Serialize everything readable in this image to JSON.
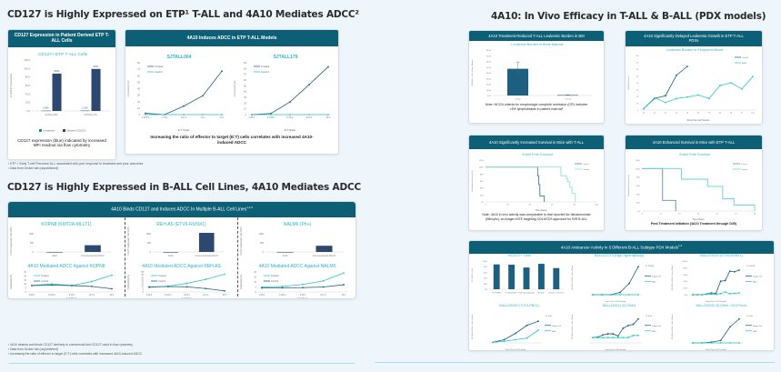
{
  "colors": {
    "header_bg": "#0c5f75",
    "accent_teal": "#2bb3c9",
    "dark_navy": "#2c4770",
    "dark_teal": "#1d5f80",
    "page_bg": "#eef5fb"
  },
  "left": {
    "section1": {
      "title": "CD127 is Highly Expressed on ETP¹ T-ALL and 4A10 Mediates ADCC²",
      "card_expression": {
        "header": "CD127 Expression in Patient Derived ETP T-ALL Cells",
        "note": "CD127 expression (blue) indicated by increased MFI readout via flow cytometry"
      },
      "card_adcc": {
        "header": "4A10 Induces ADCC in ETP T-ALL Models",
        "note": "Increasing the ratio of effector to target (E:T) cells correlates with increased 4A10-induced ADCC"
      },
      "footnotes": [
        "¹ ETP = Early T-cell Precursor ALL; associated with poor response to treatment and poor outcomes",
        "² Data from Druker lab (unpublished)"
      ]
    },
    "section2": {
      "title": "CD127 is Highly Expressed in B-ALL Cell Lines, 4A10 Mediates ADCC",
      "card": {
        "header": "4A10 Binds CD127 and Induces ADCC In Multiple B-ALL Cell Lines",
        "header_sup": "1,2,3"
      },
      "footnotes": [
        "¹ 4A10 detects and binds CD127 similarly to commercial Anti-CD127 used in flow cytometry",
        "² Data from Druker lab (unpublished)",
        "³ Increasing the ratio of effector to target (E:T) cells correlates with increased 4A10-induced ADCC"
      ]
    }
  },
  "right": {
    "title": "4A10: In Vivo Efficacy in T-ALL & B-ALL (PDX models)",
    "card_bm": {
      "header": "4A10 Treatment Reduced T-ALL Leukemic Burden in BM",
      "note": "Note: NCCN criteria for morphologic complete remission (CR) includes <5% lymphoblasts in patient marrow¹"
    },
    "card_pb": {
      "header": "4A10 Significantly Delayed Leukemia Growth in ETP T-ALL PDXs"
    },
    "card_surv_tall": {
      "header": "4A10 Significantly Increased Survival in Mice with T-ALL",
      "note": "Note: 4A10 in vivo activity was comparable to that reported for blinatumomab (Blincyto), an Amgen BiTE targeting CD19/CD3 approved for R/R B-ALL"
    },
    "card_surv_etp": {
      "header": "4A10 Enhanced Survival in Mice with ETP T-ALL",
      "note": "Post Treatment Initiation (4A10 Treatment through D45)"
    },
    "card_pdx": {
      "header": "4A10 Anticancer Activity in 5 Different B-ALL Subtype PDX Models",
      "header_sup": "1,2"
    }
  },
  "chart_data": [
    {
      "id": "cd127-etp",
      "type": "bar",
      "title": "CD127+ ETP T-ALL Cells",
      "ylabel": "% CD127 Expression",
      "ylim": [
        0,
        120
      ],
      "yticks": [
        "0.0",
        "20.0",
        "40.0",
        "60.0",
        "80.0",
        "100.0",
        "120.0"
      ],
      "categories": [
        "SJTALL004",
        "SJTALL179"
      ],
      "series": [
        {
          "name": "Unstained",
          "color": "#2a7fa8",
          "values": [
            0.9,
            1.1
          ],
          "labels": [
            "0.9%",
            "1.1%"
          ]
        },
        {
          "name": "Stained (CD127)",
          "color": "#2c4770",
          "values": [
            88,
            99
          ],
          "labels": [
            "88%",
            "99%"
          ]
        }
      ],
      "legend": "bottom"
    },
    {
      "id": "adcc-sjtall004",
      "type": "line",
      "title": "SJTALL004",
      "xlabel": "E:T Ratio",
      "ylabel": "Cytotoxicity (%)",
      "ylim": [
        0,
        80
      ],
      "yticks": [
        0,
        10,
        20,
        30,
        40,
        50,
        60,
        70,
        80
      ],
      "x": [
        "1.375:1",
        "2.75:1",
        "5.5:1",
        "11:1",
        "22:1"
      ],
      "series": [
        {
          "name": "Treated",
          "color": "#1d5f80",
          "values": [
            2,
            0,
            13,
            29,
            67
          ]
        },
        {
          "name": "Control",
          "color": "#2bc9c0",
          "values": [
            0,
            0,
            0,
            0,
            0
          ]
        }
      ],
      "legend": "top-left"
    },
    {
      "id": "adcc-sjtall179",
      "type": "line",
      "title": "SJTALL179",
      "xlabel": "E:T Ratio",
      "ylabel": "Cytotoxicity (%)",
      "ylim": [
        0,
        90
      ],
      "yticks": [
        0,
        10,
        20,
        30,
        40,
        50,
        60,
        70,
        80,
        90
      ],
      "x": [
        "1.56:1",
        "3.125:1",
        "6.25:1",
        "12.5:1",
        "25:1"
      ],
      "series": [
        {
          "name": "Treated",
          "color": "#1d5f80",
          "values": [
            0,
            2,
            22,
            52,
            83
          ]
        },
        {
          "name": "Control",
          "color": "#2bc9c0",
          "values": [
            0,
            0,
            0,
            0,
            0
          ]
        }
      ],
      "legend": "top-left"
    },
    {
      "id": "cd127-kopn8",
      "type": "bar",
      "title": "KOPN8 (KMT2A-MLLT1)",
      "ylabel": "CD127 Expression Fold (MFI)",
      "ylim": [
        0,
        1200
      ],
      "yticks": [
        0,
        500,
        1000
      ],
      "categories": [
        "4A10",
        "Commercial Anti-CD127"
      ],
      "values": [
        0,
        370
      ],
      "color": "#2c4770"
    },
    {
      "id": "cd127-rehas",
      "type": "bar",
      "title": "REH.AS (ETV6-RUNX1)",
      "ylabel": "CD127 Expression Fold (MFI)",
      "ylim": [
        0,
        1200
      ],
      "yticks": [
        0,
        500,
        1000
      ],
      "categories": [
        "4A10",
        "Commercial Anti-CD127"
      ],
      "values": [
        0,
        1050
      ],
      "color": "#2c4770"
    },
    {
      "id": "cd127-nalm6",
      "type": "bar",
      "title": "NALM6 (Ph+)",
      "ylabel": "CD127 Expression Fold (MFI)",
      "ylim": [
        0,
        1200
      ],
      "yticks": [
        0,
        500,
        1000
      ],
      "categories": [
        "4A10",
        "Commercial Anti-CD127"
      ],
      "values": [
        0,
        340
      ],
      "color": "#2c4770"
    },
    {
      "id": "adcc-kopn8",
      "type": "line",
      "title": "4A10 Mediated ADCC Against KOPN8",
      "xlabel": "E:T Ratio",
      "ylabel": "Cytotoxicity (%)",
      "ylim": [
        0,
        25
      ],
      "yticks": [
        0,
        5,
        10,
        15,
        20,
        25
      ],
      "x": [
        "1.56:1",
        "3.125:1",
        "6.25:1",
        "12.5:1",
        "25:1"
      ],
      "series": [
        {
          "name": "Treated",
          "color": "#2bc9c0",
          "values": [
            8,
            10,
            8,
            13,
            21
          ]
        },
        {
          "name": "Control",
          "color": "#1d5f80",
          "values": [
            8,
            8.5,
            8,
            7,
            4
          ]
        }
      ],
      "legend": "top-left"
    },
    {
      "id": "adcc-rehas",
      "type": "line",
      "title": "4A10 Mediated ADCC Against REH.AS",
      "xlabel": "E:T Ratio",
      "ylabel": "Cytotoxicity (%)",
      "ylim": [
        0,
        35
      ],
      "yticks": [
        0,
        5,
        10,
        15,
        20,
        25,
        30,
        35
      ],
      "x": [
        "1.56:1",
        "3.125:1",
        "6.25:1",
        "12.5:1",
        "25:1"
      ],
      "series": [
        {
          "name": "Treated",
          "color": "#2bc9c0",
          "values": [
            8,
            10,
            15,
            22,
            31
          ]
        },
        {
          "name": "Control",
          "color": "#1d5f80",
          "values": [
            9,
            9.5,
            9,
            6,
            2
          ]
        }
      ],
      "legend": "top-left"
    },
    {
      "id": "adcc-nalm6",
      "type": "line",
      "title": "4A10 Mediated ADCC Against NALM6",
      "xlabel": "E:T Ratio",
      "ylabel": "Cytotoxicity (%)",
      "ylim": [
        0,
        20
      ],
      "yticks": [
        0,
        5,
        10,
        15,
        20
      ],
      "x": [
        "1.56:1",
        "3.125:1",
        "6.25:1",
        "12.5:1",
        "25:1"
      ],
      "series": [
        {
          "name": "Treated",
          "color": "#2bc9c0",
          "values": [
            5,
            5.5,
            7.5,
            11,
            19
          ]
        },
        {
          "name": "Control",
          "color": "#1d5f80",
          "values": [
            4,
            4.2,
            4.3,
            5,
            7.2
          ]
        }
      ],
      "legend": "top-left"
    },
    {
      "id": "bm-burden",
      "type": "bar",
      "title": "Leukemic Burden in Bone Marrow",
      "ylabel": "%hCD45+ Cells in Bone Marrow",
      "ylim": [
        0,
        80
      ],
      "yticks": [
        "0.00",
        "10.00",
        "20.00",
        "30.00",
        "40.00",
        "50.00",
        "60.00",
        "70.00",
        "80.00"
      ],
      "categories": [
        "Control",
        "Treated"
      ],
      "values": [
        47,
        0.8
      ],
      "errors": [
        12,
        0.3
      ],
      "color": "#1d5f80"
    },
    {
      "id": "pb-burden",
      "type": "line",
      "title": "Leukemic Burden in Peripheral Blood",
      "xlabel": "Days Post Cell Transfer",
      "ylabel": "%hCD45 Positive",
      "ylim": [
        0,
        80
      ],
      "yticks": [
        0,
        10,
        20,
        30,
        40,
        50,
        60,
        70,
        80
      ],
      "x": [
        "20",
        "41",
        "47",
        "55",
        "62",
        "69",
        "76",
        "83",
        "90",
        "97",
        "104"
      ],
      "series": [
        {
          "name": "Control",
          "color": "#1d5f80",
          "values": [
            2,
            17,
            21,
            51,
            64,
            null,
            null,
            null,
            null,
            null,
            null
          ]
        },
        {
          "name": "4A10",
          "color": "#2bc9c0",
          "values": [
            2,
            18,
            11,
            17,
            19,
            22,
            17,
            36,
            40,
            31,
            49
          ]
        }
      ],
      "legend": "top-right"
    },
    {
      "id": "efs-tall",
      "type": "line",
      "title": "Event Free Survival",
      "xlabel": "Time (Days)",
      "ylabel": "Probability of Survival (%)",
      "ylim": [
        0,
        120
      ],
      "yticks": [
        "0%",
        "20%",
        "40%",
        "60%",
        "80%",
        "100%",
        "120%"
      ],
      "xlim": [
        0,
        100
      ],
      "xticks": [
        0,
        20,
        40,
        60,
        80,
        100
      ],
      "series": [
        {
          "name": "Control",
          "color": "#3b7f9c",
          "steps": [
            [
              0,
              100
            ],
            [
              47,
              100
            ],
            [
              47,
              75
            ],
            [
              48,
              75
            ],
            [
              48,
              50
            ],
            [
              49,
              50
            ],
            [
              49,
              17
            ],
            [
              53,
              17
            ],
            [
              53,
              0
            ]
          ]
        },
        {
          "name": "Treated",
          "color": "#8fdfe0",
          "steps": [
            [
              0,
              100
            ],
            [
              68,
              100
            ],
            [
              68,
              75
            ],
            [
              73,
              75
            ],
            [
              73,
              67
            ],
            [
              74,
              67
            ],
            [
              74,
              58
            ],
            [
              76,
              58
            ],
            [
              76,
              42
            ],
            [
              78,
              42
            ],
            [
              78,
              25
            ],
            [
              81,
              25
            ],
            [
              81,
              0
            ]
          ]
        }
      ],
      "legend": "top-right"
    },
    {
      "id": "efs-etp",
      "type": "line",
      "title": "Event Free Survival",
      "xlabel": "Time (Days)",
      "ylabel": "Probability of Survival (%)",
      "ylim": [
        0,
        120
      ],
      "yticks": [
        "0%",
        "20%",
        "40%",
        "60%",
        "80%",
        "100%",
        "120%"
      ],
      "xlim": [
        0,
        60
      ],
      "xticks": [
        0,
        10,
        20,
        30,
        40,
        50,
        60
      ],
      "series": [
        {
          "name": "Control",
          "color": "#5c8faa",
          "steps": [
            [
              0,
              100
            ],
            [
              11,
              100
            ],
            [
              11,
              25
            ],
            [
              18,
              25
            ],
            [
              18,
              0
            ]
          ]
        },
        {
          "name": "Treated",
          "color": "#5fd3d6",
          "steps": [
            [
              0,
              100
            ],
            [
              21,
              100
            ],
            [
              21,
              75
            ],
            [
              35,
              75
            ],
            [
              35,
              58
            ],
            [
              43,
              58
            ],
            [
              43,
              29
            ],
            [
              49,
              29
            ],
            [
              49,
              14
            ],
            [
              60,
              14
            ],
            [
              60,
              0
            ]
          ]
        }
      ],
      "legend": "top-right"
    },
    {
      "id": "pdx-cd127",
      "type": "bar",
      "title": "%CD127+ Cells",
      "ylabel": "% CD127+ Cells",
      "ylim": [
        0,
        100
      ],
      "yticks": [
        "0%",
        "20%",
        "40%",
        "60%",
        "80%",
        "100%"
      ],
      "categories": [
        "TCF3-PBX1",
        "ETV6-RUNX1",
        "High-hyperdiploidy",
        "B-Other",
        "B-Other CD127mut"
      ],
      "values": [
        88,
        87,
        77,
        90,
        75
      ],
      "color": "#1d5f80"
    },
    {
      "id": "pdx-ball022713",
      "type": "line",
      "title": "BALL022713 (High-hyperdiploidy)",
      "xlabel": "Days Post Cell Transfer",
      "ylabel": "%hCD45+hCD19+ Cells in Blood",
      "annotation": "P< 0.0005",
      "series": [
        {
          "name": "Isotype Ctrl",
          "color": "#1d5f80",
          "values": [
            0,
            0,
            0,
            2,
            10,
            25
          ]
        },
        {
          "name": "4A10",
          "color": "#2bc9c0",
          "values": [
            0,
            0,
            0,
            0,
            0,
            0
          ]
        }
      ]
    },
    {
      "id": "pdx-ball076102",
      "type": "line",
      "title": "BALL076102 (ETV6-RUNX1)",
      "xlabel": "Days Post Cell Transfer",
      "ylabel": "%hCD45+hCD19+ Cells in Blood",
      "ylim": [
        0,
        100
      ],
      "yticks": [
        "0.00",
        "20.00",
        "40.00",
        "60.00",
        "80.00",
        "100.00"
      ],
      "annotation": "P< 0.0005",
      "series": [
        {
          "name": "Isotype Ctrl",
          "color": "#1d5f80",
          "values": [
            0,
            0,
            0,
            2,
            5,
            4,
            40,
            42,
            70,
            68,
            73
          ]
        },
        {
          "name": "4A10",
          "color": "#2bc9c0",
          "values": [
            0,
            0,
            0,
            1,
            2,
            1,
            3,
            8,
            3,
            4,
            5
          ]
        }
      ]
    },
    {
      "id": "pdx-ball230353",
      "type": "line",
      "title": "BALL230353 (TCF3-PBX1)",
      "xlabel": "Days Post Cell Transfer",
      "ylabel": "%hCD45+hCD19+ Cells in Blood",
      "ylim": [
        0,
        100
      ],
      "annotation": "P< 0.05",
      "series": [
        {
          "name": "Isotype Ctrl",
          "color": "#1d5f80",
          "values": [
            2,
            10,
            30,
            55,
            68
          ]
        },
        {
          "name": "4A10",
          "color": "#2bc9c0",
          "values": [
            2,
            5,
            10,
            15,
            40
          ]
        }
      ]
    },
    {
      "id": "pdx-ball150111",
      "type": "line",
      "title": "BALL150111 (B-Other)",
      "xlabel": "Days Post Cell Transfer",
      "ylabel": "%hCD45+hCD19+ Cells in Blood",
      "ylim": [
        -20,
        100
      ],
      "annotation": "P< 0.05",
      "series": [
        {
          "name": "Isotype Ctrl",
          "color": "#1d5f80",
          "values": [
            0,
            2,
            10,
            14,
            14,
            6,
            35,
            45,
            50,
            70
          ]
        },
        {
          "name": "4A10",
          "color": "#2bc9c0",
          "values": [
            0,
            0,
            0,
            0,
            0,
            0,
            0,
            0,
            8,
            8
          ]
        }
      ]
    },
    {
      "id": "pdx-ball200242",
      "type": "line",
      "title": "BALL200242 (B-Other; CD127mut)",
      "xlabel": "Days Post Cell Transfer",
      "ylabel": "%hCD45+hCD19+ Cells in Blood",
      "annotation": "P< 0.05",
      "series": [
        {
          "name": "Isotype Ctrl",
          "color": "#1d5f80",
          "values": [
            0,
            0,
            1,
            3,
            20,
            30
          ]
        },
        {
          "name": "4A10",
          "color": "#2bc9c0",
          "values": [
            0,
            0,
            0,
            0,
            0,
            0
          ]
        }
      ]
    }
  ]
}
